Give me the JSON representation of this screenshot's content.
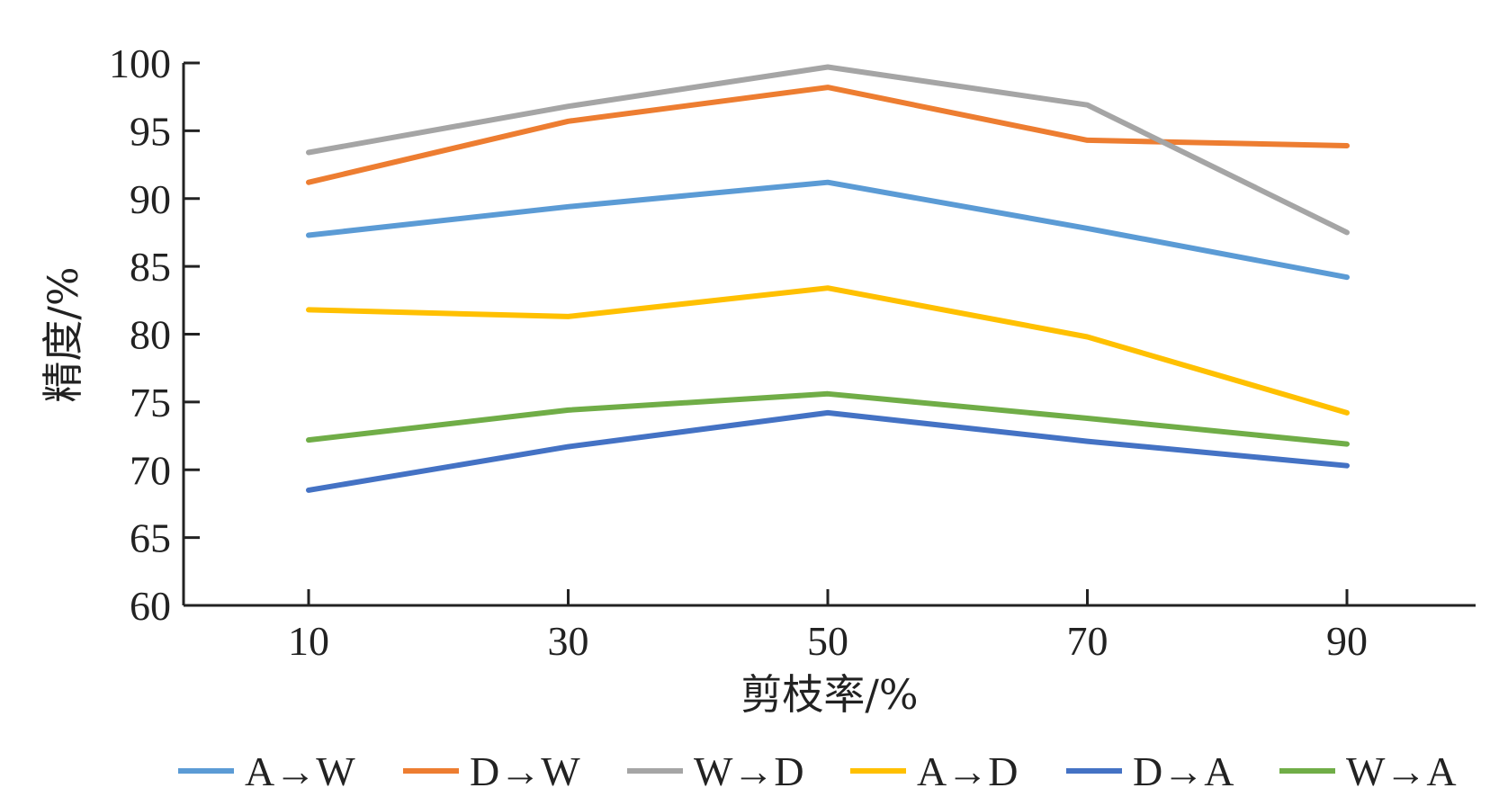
{
  "chart_data": {
    "type": "line",
    "title": "",
    "xlabel": "剪枝率/%",
    "ylabel": "精度/%",
    "ylim": [
      60,
      100
    ],
    "yticks": [
      "60",
      "65",
      "70",
      "75",
      "80",
      "85",
      "90",
      "95",
      "100"
    ],
    "categories": [
      "10",
      "30",
      "50",
      "70",
      "90"
    ],
    "grid": false,
    "legend_position": "bottom",
    "series": [
      {
        "name": "A→W",
        "color": "#5b9bd5",
        "values": [
          87.3,
          89.4,
          91.2,
          87.8,
          84.2
        ]
      },
      {
        "name": "D→W",
        "color": "#ed7d31",
        "values": [
          91.2,
          95.7,
          98.2,
          94.3,
          93.9
        ]
      },
      {
        "name": "W→D",
        "color": "#a5a5a5",
        "values": [
          93.4,
          96.8,
          99.7,
          96.9,
          87.5
        ]
      },
      {
        "name": "A→D",
        "color": "#ffc000",
        "values": [
          81.8,
          81.3,
          83.4,
          79.8,
          74.2
        ]
      },
      {
        "name": "D→A",
        "color": "#4472c4",
        "values": [
          68.5,
          71.7,
          74.2,
          72.1,
          70.3
        ]
      },
      {
        "name": "W→A",
        "color": "#70ad47",
        "values": [
          72.2,
          74.4,
          75.6,
          73.8,
          71.9
        ]
      }
    ]
  }
}
